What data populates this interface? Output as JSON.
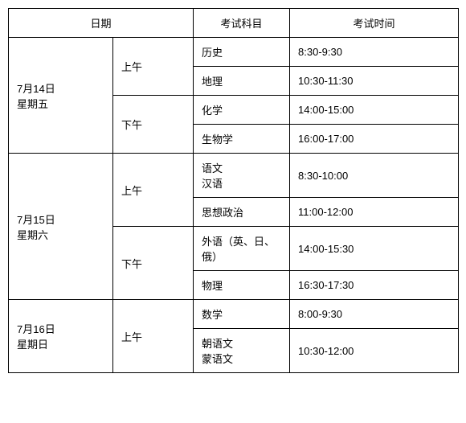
{
  "headers": {
    "date": "日期",
    "subject": "考试科目",
    "time": "考试时间"
  },
  "days": {
    "d1": {
      "date_line1": "7月14日",
      "date_line2": "星期五"
    },
    "d2": {
      "date_line1": "7月15日",
      "date_line2": "星期六"
    },
    "d3": {
      "date_line1": "7月16日",
      "date_line2": "星期日"
    }
  },
  "ampm": {
    "am": "上午",
    "pm": "下午"
  },
  "subjects": {
    "history": "历史",
    "geography": "地理",
    "chemistry": "化学",
    "biology": "生物学",
    "chinese_line1": "语文",
    "chinese_line2": "汉语",
    "politics": "思想政治",
    "foreign_line1": "外语（英、日、",
    "foreign_line2": "俄）",
    "physics": "物理",
    "math": "数学",
    "lang2_line1": "朝语文",
    "lang2_line2": "蒙语文"
  },
  "times": {
    "t1": "8:30-9:30",
    "t2": "10:30-11:30",
    "t3": "14:00-15:00",
    "t4": "16:00-17:00",
    "t5": "8:30-10:00",
    "t6": "11:00-12:00",
    "t7": "14:00-15:30",
    "t8": "16:30-17:30",
    "t9": "8:00-9:30",
    "t10": "10:30-12:00"
  }
}
